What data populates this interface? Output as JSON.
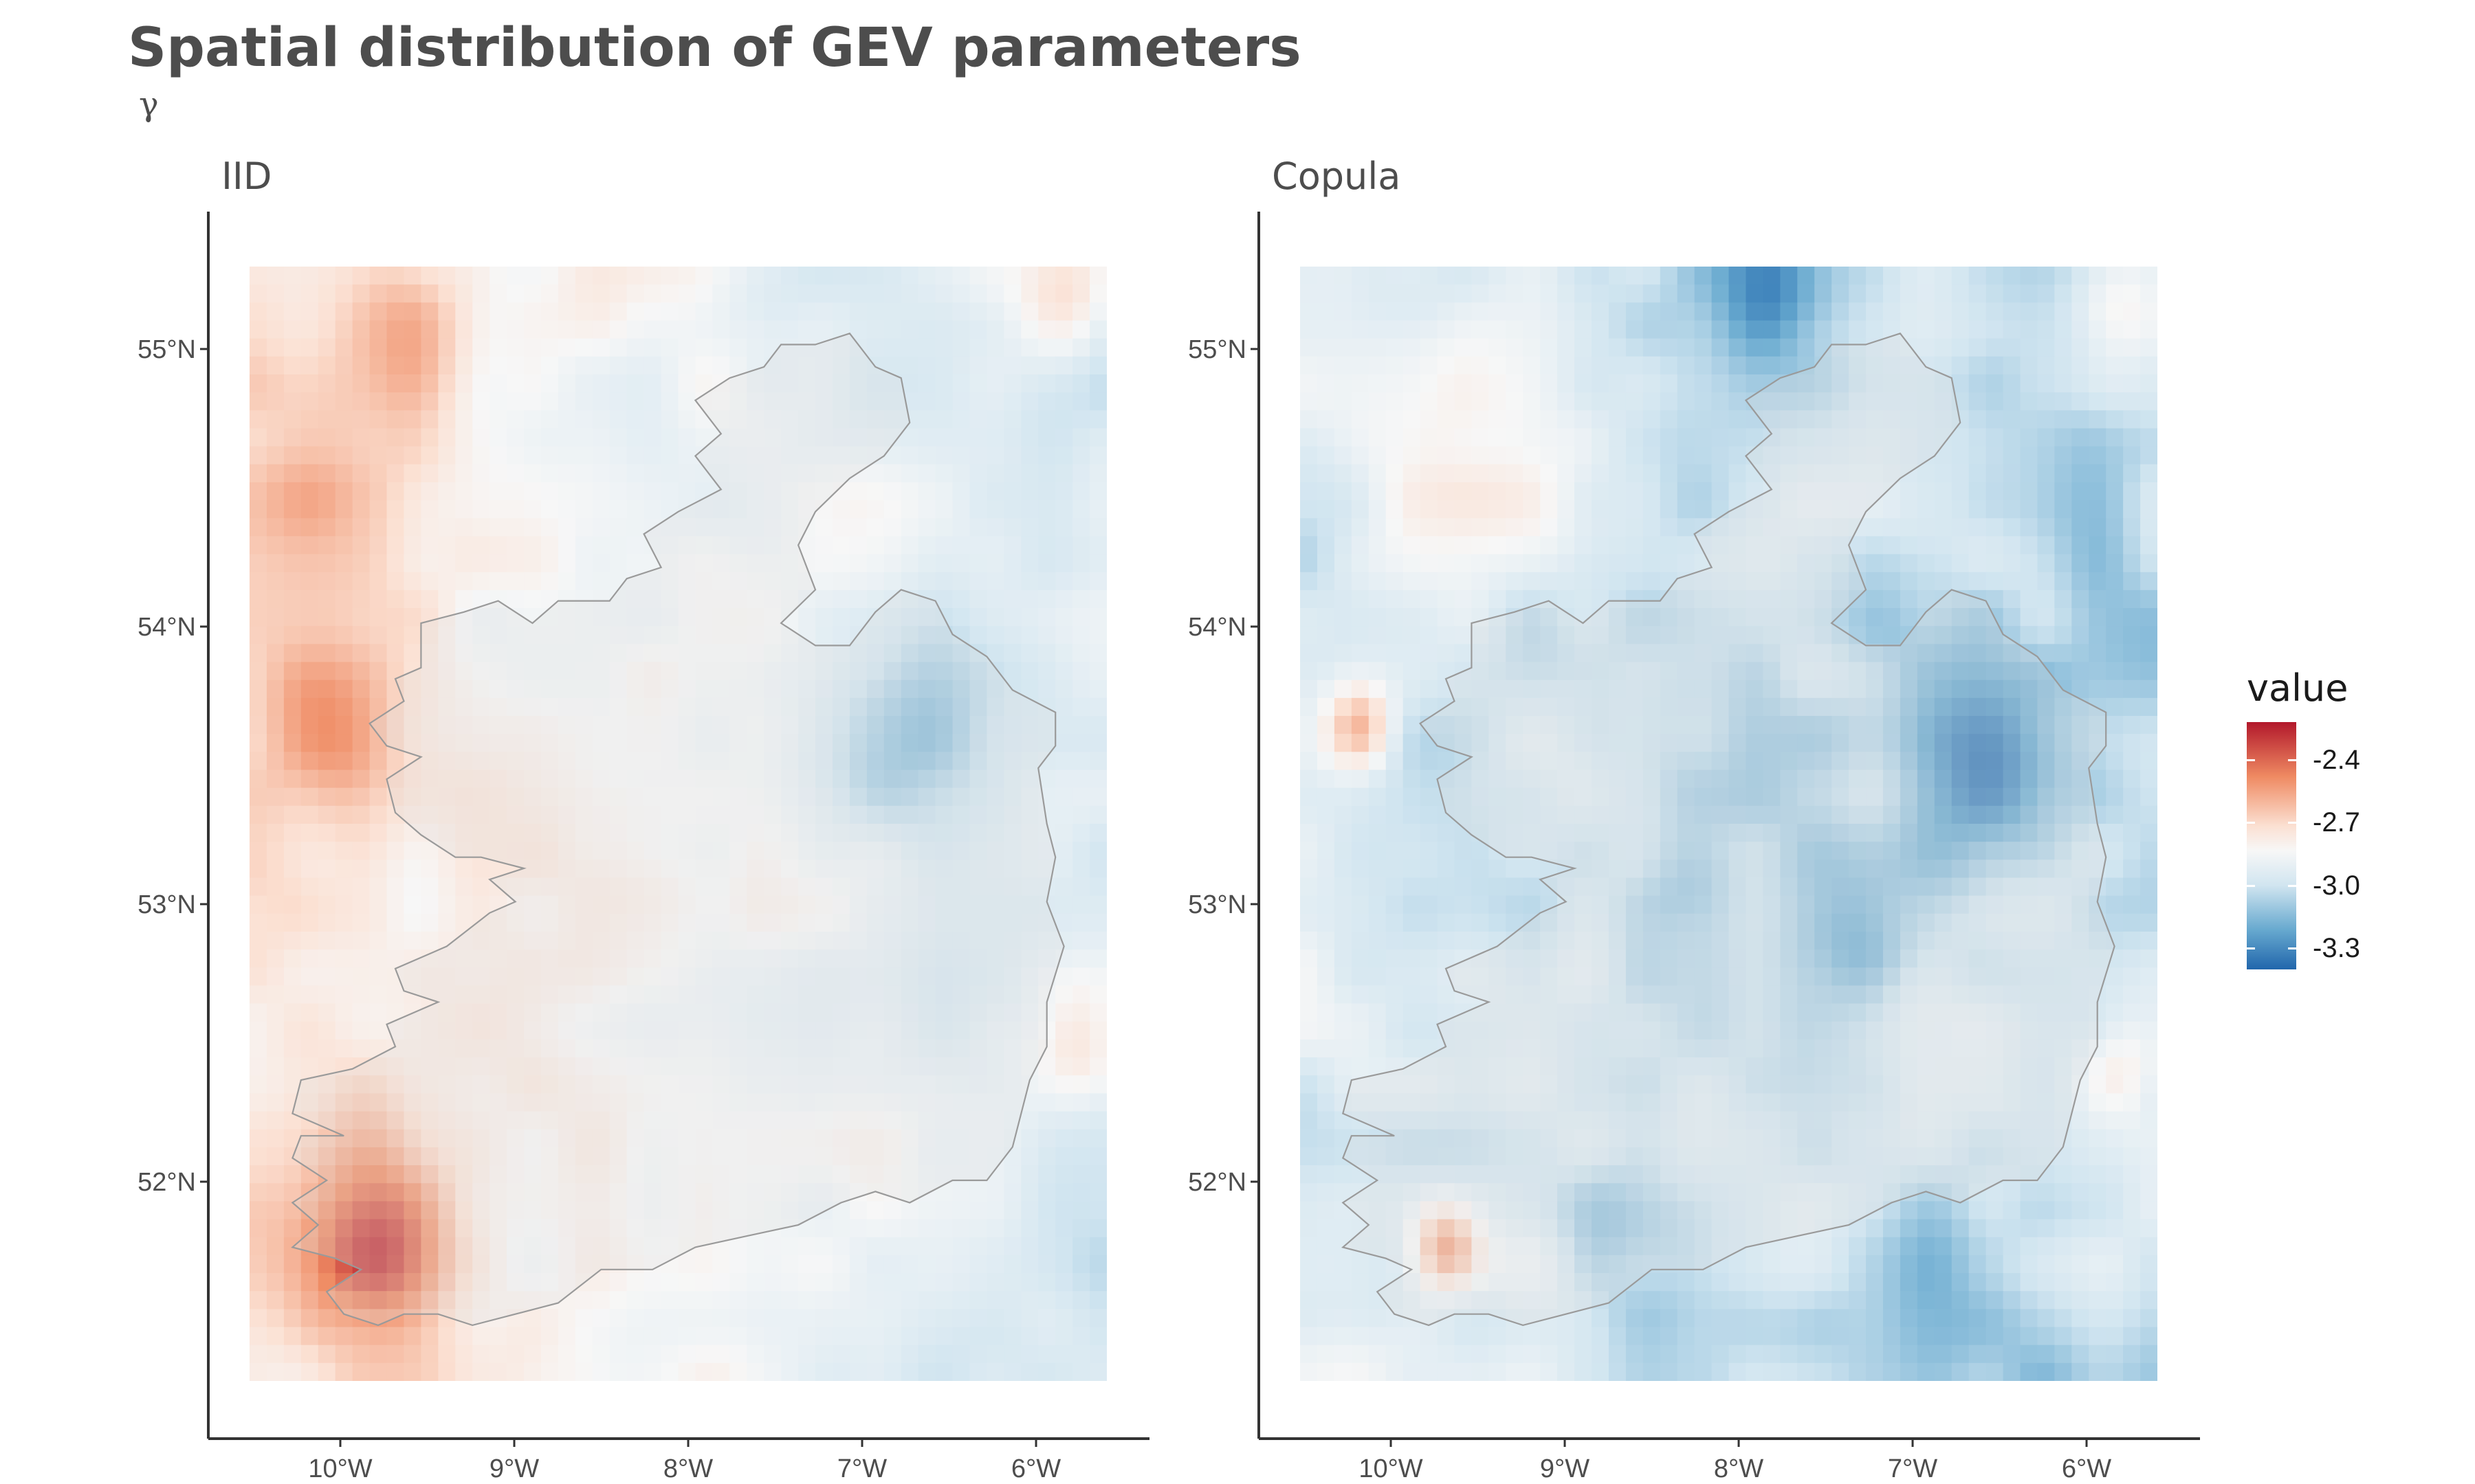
{
  "title": "Spatial distribution of GEV parameters",
  "subtitle": "γ",
  "panels": [
    {
      "title": "IID"
    },
    {
      "title": "Copula"
    }
  ],
  "lat_ticks": [
    {
      "value": 55,
      "label": "55°N"
    },
    {
      "value": 54,
      "label": "54°N"
    },
    {
      "value": 53,
      "label": "53°N"
    },
    {
      "value": 52,
      "label": "52°N"
    }
  ],
  "lon_ticks": [
    {
      "value": -10,
      "label": "10°W"
    },
    {
      "value": -9,
      "label": "9°W"
    },
    {
      "value": -8,
      "label": "8°W"
    },
    {
      "value": -7,
      "label": "7°W"
    },
    {
      "value": -6,
      "label": "6°W"
    }
  ],
  "legend": {
    "title": "value",
    "range": [
      -3.4,
      -2.22
    ],
    "ticks": [
      {
        "value": -2.4,
        "label": "-2.4"
      },
      {
        "value": -2.7,
        "label": "-2.7"
      },
      {
        "value": -3.0,
        "label": "-3.0"
      },
      {
        "value": -3.3,
        "label": "-3.3"
      }
    ],
    "colors": {
      "high": "#b2182b",
      "mid": "#f7f7f7",
      "low": "#2166ac"
    }
  },
  "map_extent": {
    "lon": [
      -10.55,
      -5.6
    ],
    "lat": [
      51.3,
      55.3
    ]
  },
  "coast_color": "#9a9a9a",
  "land_overlay": "#e0e0e0"
}
